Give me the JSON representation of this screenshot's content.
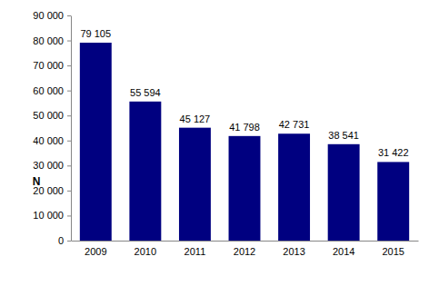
{
  "chart_data": {
    "type": "bar",
    "y_label": "N",
    "categories": [
      "2009",
      "2010",
      "2011",
      "2012",
      "2013",
      "2014",
      "2015"
    ],
    "values": [
      79105,
      55594,
      45127,
      41798,
      42731,
      38541,
      31422
    ],
    "value_labels": [
      "79 105",
      "55 594",
      "45 127",
      "41 798",
      "42 731",
      "38 541",
      "31 422"
    ],
    "color": "#000080",
    "ylim": [
      0,
      90000
    ],
    "yticks": [
      {
        "value": 0,
        "label": "0"
      },
      {
        "value": 10000,
        "label": "10 000"
      },
      {
        "value": 20000,
        "label": "20 000"
      },
      {
        "value": 30000,
        "label": "30 000"
      },
      {
        "value": 40000,
        "label": "40 000"
      },
      {
        "value": 50000,
        "label": "50 000"
      },
      {
        "value": 60000,
        "label": "60 000"
      },
      {
        "value": 70000,
        "label": "70 000"
      },
      {
        "value": 80000,
        "label": "80 000"
      },
      {
        "value": 90000,
        "label": "90 000"
      }
    ],
    "grid": false,
    "data_labels": true
  }
}
